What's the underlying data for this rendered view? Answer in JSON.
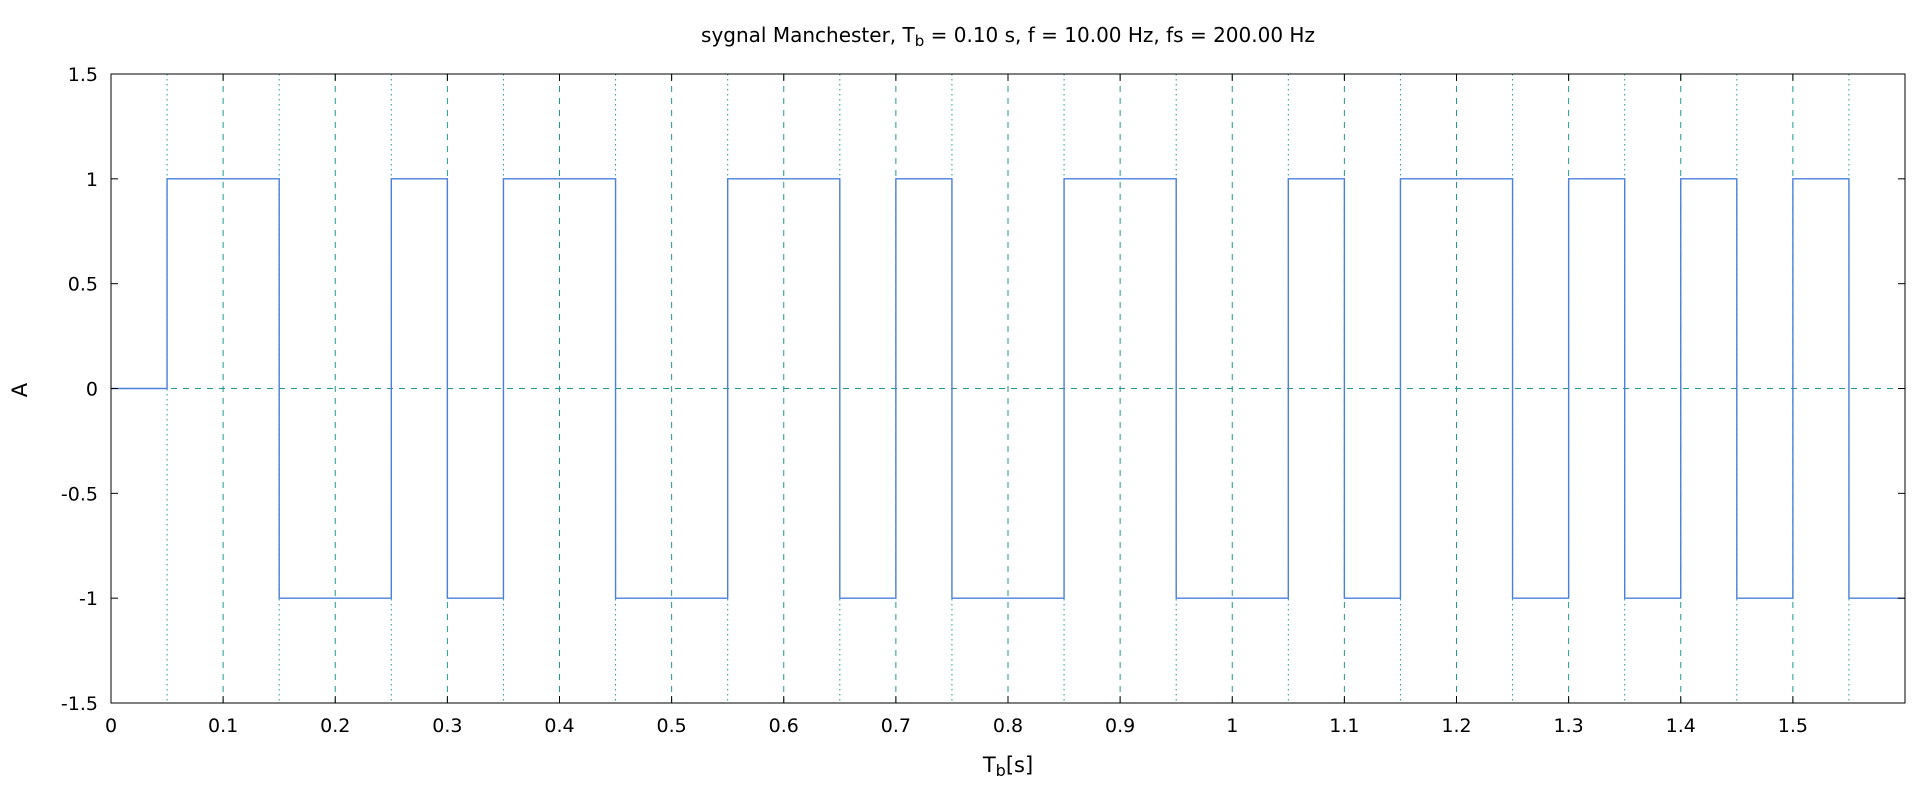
{
  "chart_data": {
    "type": "line",
    "title": {
      "prefix": "sygnal Manchester, T",
      "sub": "b",
      "suffix": " = 0.10 s, f = 10.00 Hz, fs = 200.00 Hz"
    },
    "xlabel": {
      "main": "T",
      "sub": "b",
      "suffix": "[s]"
    },
    "ylabel": "A",
    "xlim": [
      0,
      1.6
    ],
    "ylim": [
      -1.5,
      1.5
    ],
    "xticks": [
      0,
      0.1,
      0.2,
      0.3,
      0.4,
      0.5,
      0.6,
      0.7,
      0.8,
      0.9,
      1,
      1.1,
      1.2,
      1.3,
      1.4,
      1.5
    ],
    "xtick_labels": [
      "0",
      "0.1",
      "0.2",
      "0.3",
      "0.4",
      "0.5",
      "0.6",
      "0.7",
      "0.8",
      "0.9",
      "1",
      "1.1",
      "1.2",
      "1.3",
      "1.4",
      "1.5"
    ],
    "yticks": [
      -1.5,
      -1,
      -0.5,
      0,
      0.5,
      1,
      1.5
    ],
    "ytick_labels": [
      "-1.5",
      "-1",
      "-0.5",
      "0",
      "0.5",
      "1",
      "1.5"
    ],
    "grid": {
      "major_x_dashed": [
        0.1,
        0.2,
        0.3,
        0.4,
        0.5,
        0.6,
        0.7,
        0.8,
        0.9,
        1,
        1.1,
        1.2,
        1.3,
        1.4,
        1.5
      ],
      "minor_x_dotted": [
        0.05,
        0.15,
        0.25,
        0.35,
        0.45,
        0.55,
        0.65,
        0.75,
        0.85,
        0.95,
        1.05,
        1.15,
        1.25,
        1.35,
        1.45,
        1.55
      ],
      "y_dashed": [
        0
      ]
    },
    "series": [
      {
        "style": "step",
        "color": "#4a7fdb",
        "points": [
          [
            0,
            0
          ],
          [
            0.05,
            0
          ],
          [
            0.05,
            1
          ],
          [
            0.15,
            1
          ],
          [
            0.15,
            -1
          ],
          [
            0.25,
            -1
          ],
          [
            0.25,
            1
          ],
          [
            0.3,
            1
          ],
          [
            0.3,
            -1
          ],
          [
            0.35,
            -1
          ],
          [
            0.35,
            1
          ],
          [
            0.45,
            1
          ],
          [
            0.45,
            -1
          ],
          [
            0.55,
            -1
          ],
          [
            0.55,
            1
          ],
          [
            0.65,
            1
          ],
          [
            0.65,
            -1
          ],
          [
            0.7,
            -1
          ],
          [
            0.7,
            1
          ],
          [
            0.75,
            1
          ],
          [
            0.75,
            -1
          ],
          [
            0.85,
            -1
          ],
          [
            0.85,
            1
          ],
          [
            0.95,
            1
          ],
          [
            0.95,
            -1
          ],
          [
            1.05,
            -1
          ],
          [
            1.05,
            1
          ],
          [
            1.1,
            1
          ],
          [
            1.1,
            -1
          ],
          [
            1.15,
            -1
          ],
          [
            1.15,
            1
          ],
          [
            1.25,
            1
          ],
          [
            1.25,
            -1
          ],
          [
            1.3,
            -1
          ],
          [
            1.3,
            1
          ],
          [
            1.35,
            1
          ],
          [
            1.35,
            -1
          ],
          [
            1.4,
            -1
          ],
          [
            1.4,
            1
          ],
          [
            1.45,
            1
          ],
          [
            1.45,
            -1
          ],
          [
            1.5,
            -1
          ],
          [
            1.5,
            1
          ],
          [
            1.55,
            1
          ],
          [
            1.55,
            -1
          ],
          [
            1.6,
            -1
          ]
        ]
      }
    ],
    "colors": {
      "signal": "#4a7fdb",
      "grid": "#1f9a8e",
      "frame": "#000000"
    }
  }
}
